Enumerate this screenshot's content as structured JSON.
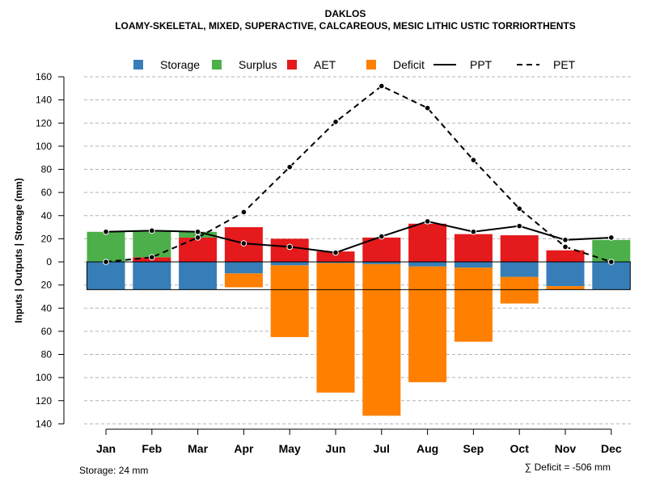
{
  "chart_data": {
    "type": "bar",
    "title": "DAKLOS",
    "subtitle": "LOAMY-SKELETAL, MIXED, SUPERACTIVE, CALCAREOUS, MESIC LITHIC USTIC TORRIORTHENTS",
    "ylabel": "Inputs | Outputs | Storage    (mm)",
    "xlabel": "",
    "ylim": [
      -140,
      160
    ],
    "y_ticks": [
      160,
      140,
      120,
      100,
      80,
      60,
      40,
      20,
      0,
      -20,
      -40,
      -60,
      -80,
      -100,
      -120,
      -140
    ],
    "y_tick_labels": [
      "160",
      "140",
      "120",
      "100",
      "80",
      "60",
      "40",
      "20",
      "0",
      "20",
      "40",
      "60",
      "80",
      "100",
      "120",
      "140"
    ],
    "grid": true,
    "categories": [
      "Jan",
      "Feb",
      "Mar",
      "Apr",
      "May",
      "Jun",
      "Jul",
      "Aug",
      "Sep",
      "Oct",
      "Nov",
      "Dec"
    ],
    "legend": {
      "position": "top",
      "items": [
        {
          "name": "Storage",
          "kind": "box",
          "color": "#377eb8"
        },
        {
          "name": "Surplus",
          "kind": "box",
          "color": "#4daf4a"
        },
        {
          "name": "AET",
          "kind": "box",
          "color": "#e41a1c"
        },
        {
          "name": "Deficit",
          "kind": "box",
          "color": "#ff7f00"
        },
        {
          "name": "PPT",
          "kind": "solid",
          "color": "#000000"
        },
        {
          "name": "PET",
          "kind": "dashed",
          "color": "#000000"
        }
      ]
    },
    "bars_positive": {
      "AET": [
        0,
        4,
        21,
        30,
        20,
        9,
        21,
        33,
        24,
        23,
        10,
        0
      ],
      "Surplus": [
        26,
        23,
        5,
        0,
        0,
        0,
        0,
        0,
        0,
        0,
        0,
        19
      ]
    },
    "bars_negative": {
      "Storage": [
        24,
        24,
        24,
        10,
        3,
        1,
        2,
        4,
        5,
        13,
        21,
        24
      ],
      "Deficit": [
        0,
        0,
        0,
        12,
        62,
        112,
        131,
        100,
        64,
        23,
        3,
        0
      ]
    },
    "series": [
      {
        "name": "PPT",
        "style": "solid",
        "values": [
          26,
          27,
          26,
          16,
          13,
          8,
          22,
          35,
          26,
          31,
          19,
          21
        ]
      },
      {
        "name": "PET",
        "style": "dashed",
        "values": [
          0,
          4,
          21,
          43,
          82,
          121,
          152,
          133,
          88,
          46,
          13,
          0
        ]
      }
    ],
    "storage_capacity": 24,
    "footer_left": "Storage: 24 mm",
    "footer_right": "∑ Deficit = -506 mm",
    "colors": {
      "Storage": "#377eb8",
      "Surplus": "#4daf4a",
      "AET": "#e41a1c",
      "Deficit": "#ff7f00",
      "line": "#000000",
      "grid": "#b3b3b3"
    }
  }
}
